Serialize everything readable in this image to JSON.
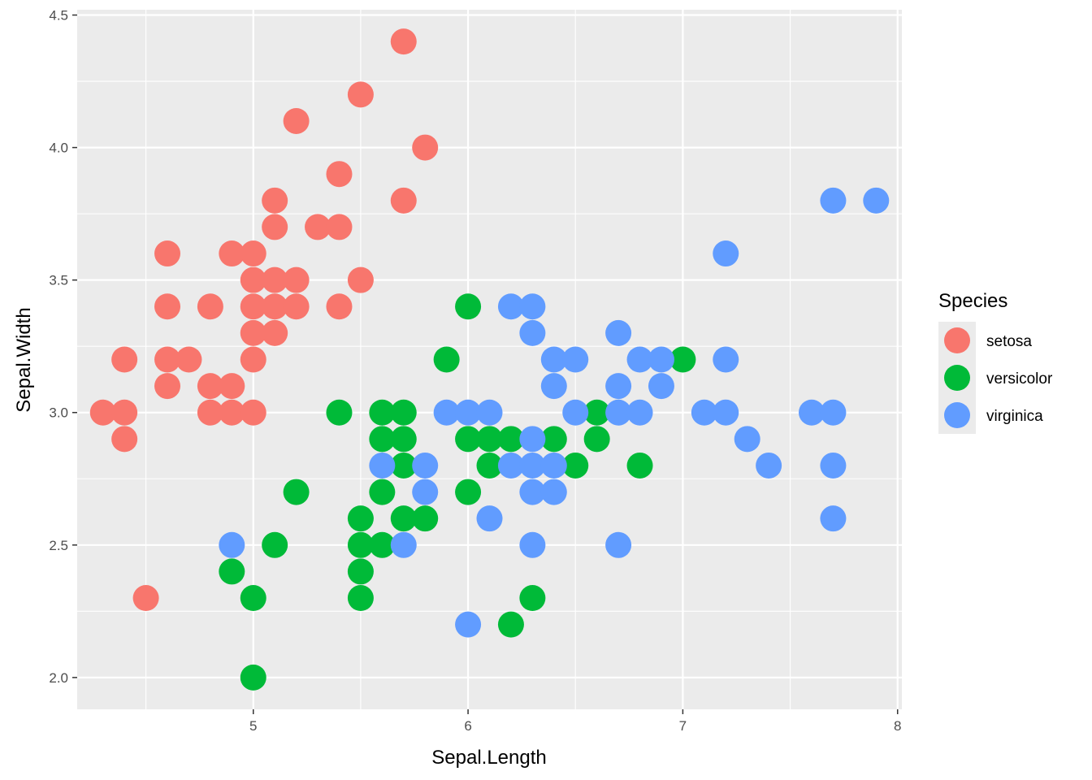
{
  "chart_data": {
    "type": "scatter",
    "xlabel": "Sepal.Length",
    "ylabel": "Sepal.Width",
    "xlim": [
      4.18,
      8.02
    ],
    "ylim": [
      1.88,
      4.52
    ],
    "x_ticks": [
      5,
      6,
      7,
      8
    ],
    "x_tick_labels": [
      "5",
      "6",
      "7",
      "8"
    ],
    "y_ticks": [
      2.0,
      2.5,
      3.0,
      3.5,
      4.0,
      4.5
    ],
    "y_tick_labels": [
      "2.0",
      "2.5",
      "3.0",
      "3.5",
      "4.0",
      "4.5"
    ],
    "grid": true,
    "legend": {
      "title": "Species",
      "position": "right"
    },
    "series": [
      {
        "name": "setosa",
        "color": "#F8766D",
        "points": [
          [
            5.7,
            4.4
          ],
          [
            5.5,
            4.2
          ],
          [
            5.2,
            4.1
          ],
          [
            5.8,
            4.0
          ],
          [
            5.4,
            3.9
          ],
          [
            5.1,
            3.8
          ],
          [
            5.7,
            3.8
          ],
          [
            5.1,
            3.7
          ],
          [
            5.3,
            3.7
          ],
          [
            5.4,
            3.7
          ],
          [
            4.6,
            3.6
          ],
          [
            4.9,
            3.6
          ],
          [
            5.0,
            3.6
          ],
          [
            5.0,
            3.5
          ],
          [
            5.1,
            3.5
          ],
          [
            5.2,
            3.5
          ],
          [
            5.5,
            3.5
          ],
          [
            4.6,
            3.4
          ],
          [
            4.8,
            3.4
          ],
          [
            5.0,
            3.4
          ],
          [
            5.1,
            3.4
          ],
          [
            5.2,
            3.4
          ],
          [
            5.4,
            3.4
          ],
          [
            5.0,
            3.3
          ],
          [
            5.1,
            3.3
          ],
          [
            4.4,
            3.2
          ],
          [
            4.6,
            3.2
          ],
          [
            4.7,
            3.2
          ],
          [
            5.0,
            3.2
          ],
          [
            4.6,
            3.1
          ],
          [
            4.8,
            3.1
          ],
          [
            4.9,
            3.1
          ],
          [
            4.3,
            3.0
          ],
          [
            4.4,
            3.0
          ],
          [
            4.8,
            3.0
          ],
          [
            4.9,
            3.0
          ],
          [
            5.0,
            3.0
          ],
          [
            4.4,
            2.9
          ],
          [
            4.5,
            2.3
          ]
        ]
      },
      {
        "name": "versicolor",
        "color": "#00BA38",
        "points": [
          [
            6.0,
            3.4
          ],
          [
            5.9,
            3.2
          ],
          [
            7.0,
            3.2
          ],
          [
            5.4,
            3.0
          ],
          [
            5.6,
            3.0
          ],
          [
            5.7,
            3.0
          ],
          [
            6.6,
            3.0
          ],
          [
            5.6,
            2.9
          ],
          [
            5.7,
            2.9
          ],
          [
            6.0,
            2.9
          ],
          [
            6.1,
            2.9
          ],
          [
            6.2,
            2.9
          ],
          [
            6.4,
            2.9
          ],
          [
            6.6,
            2.9
          ],
          [
            5.7,
            2.8
          ],
          [
            6.1,
            2.8
          ],
          [
            6.5,
            2.8
          ],
          [
            6.8,
            2.8
          ],
          [
            5.2,
            2.7
          ],
          [
            5.6,
            2.7
          ],
          [
            6.0,
            2.7
          ],
          [
            5.5,
            2.6
          ],
          [
            5.7,
            2.6
          ],
          [
            5.8,
            2.6
          ],
          [
            5.1,
            2.5
          ],
          [
            5.5,
            2.5
          ],
          [
            5.6,
            2.5
          ],
          [
            4.9,
            2.4
          ],
          [
            5.5,
            2.4
          ],
          [
            5.0,
            2.3
          ],
          [
            5.5,
            2.3
          ],
          [
            6.3,
            2.3
          ],
          [
            6.2,
            2.2
          ],
          [
            5.0,
            2.0
          ]
        ]
      },
      {
        "name": "virginica",
        "color": "#619CFF",
        "points": [
          [
            7.7,
            3.8
          ],
          [
            7.9,
            3.8
          ],
          [
            7.2,
            3.6
          ],
          [
            6.2,
            3.4
          ],
          [
            6.3,
            3.4
          ],
          [
            6.3,
            3.3
          ],
          [
            6.7,
            3.3
          ],
          [
            6.4,
            3.2
          ],
          [
            6.5,
            3.2
          ],
          [
            6.8,
            3.2
          ],
          [
            6.9,
            3.2
          ],
          [
            7.2,
            3.2
          ],
          [
            6.4,
            3.1
          ],
          [
            6.7,
            3.1
          ],
          [
            6.9,
            3.1
          ],
          [
            5.9,
            3.0
          ],
          [
            6.0,
            3.0
          ],
          [
            6.1,
            3.0
          ],
          [
            6.5,
            3.0
          ],
          [
            6.7,
            3.0
          ],
          [
            6.8,
            3.0
          ],
          [
            7.1,
            3.0
          ],
          [
            7.2,
            3.0
          ],
          [
            7.6,
            3.0
          ],
          [
            7.7,
            3.0
          ],
          [
            6.3,
            2.9
          ],
          [
            7.3,
            2.9
          ],
          [
            5.6,
            2.8
          ],
          [
            5.8,
            2.8
          ],
          [
            6.2,
            2.8
          ],
          [
            6.3,
            2.8
          ],
          [
            6.4,
            2.8
          ],
          [
            7.4,
            2.8
          ],
          [
            7.7,
            2.8
          ],
          [
            5.8,
            2.7
          ],
          [
            6.3,
            2.7
          ],
          [
            6.4,
            2.7
          ],
          [
            6.1,
            2.6
          ],
          [
            7.7,
            2.6
          ],
          [
            4.9,
            2.5
          ],
          [
            5.7,
            2.5
          ],
          [
            6.3,
            2.5
          ],
          [
            6.7,
            2.5
          ],
          [
            6.0,
            2.2
          ]
        ]
      }
    ]
  }
}
